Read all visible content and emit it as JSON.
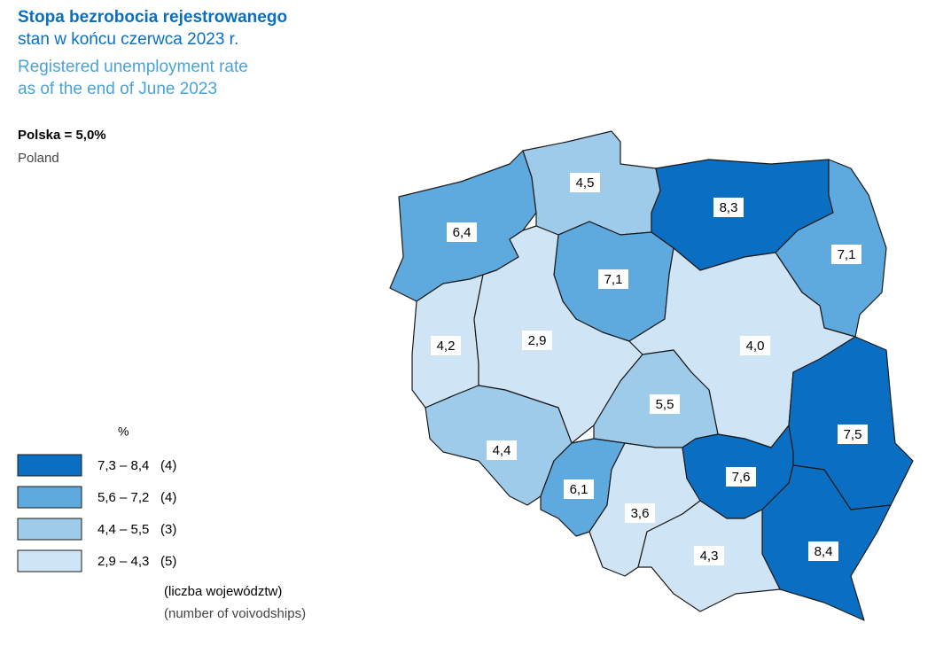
{
  "title": {
    "pl_bold": "Stopa bezrobocia rejestrowanego",
    "pl": "stan w końcu czerwca 2023 r.",
    "en_1": "Registered unemployment rate",
    "en_2": "as of the end of June 2023"
  },
  "country": {
    "pl": "Polska = 5,0%",
    "en": "Poland"
  },
  "legend": {
    "unit": "%",
    "classes": [
      {
        "range": "7,3 – 8,4",
        "count": "(4)",
        "color": "#0a6fc2"
      },
      {
        "range": "5,6 – 7,2",
        "count": "(4)",
        "color": "#5ea9dd"
      },
      {
        "range": "4,4 – 5,5",
        "count": "(3)",
        "color": "#9fcbeb"
      },
      {
        "range": "2,9 – 4,3",
        "count": "(5)",
        "color": "#cfe4f5"
      }
    ],
    "note_pl": "(liczba województw)",
    "note_en": "(number of voivodships)"
  },
  "regions": [
    {
      "value": "6,4",
      "color": "#5ea9dd"
    },
    {
      "value": "4,5",
      "color": "#9fcbeb"
    },
    {
      "value": "8,3",
      "color": "#0a6fc2"
    },
    {
      "value": "7,1",
      "color": "#5ea9dd"
    },
    {
      "value": "7,1",
      "color": "#5ea9dd"
    },
    {
      "value": "4,2",
      "color": "#cfe4f5"
    },
    {
      "value": "2,9",
      "color": "#cfe4f5"
    },
    {
      "value": "4,0",
      "color": "#cfe4f5"
    },
    {
      "value": "5,5",
      "color": "#9fcbeb"
    },
    {
      "value": "4,4",
      "color": "#9fcbeb"
    },
    {
      "value": "6,1",
      "color": "#5ea9dd"
    },
    {
      "value": "3,6",
      "color": "#cfe4f5"
    },
    {
      "value": "7,6",
      "color": "#0a6fc2"
    },
    {
      "value": "7,5",
      "color": "#0a6fc2"
    },
    {
      "value": "8,4",
      "color": "#0a6fc2"
    },
    {
      "value": "4,3",
      "color": "#cfe4f5"
    }
  ]
}
